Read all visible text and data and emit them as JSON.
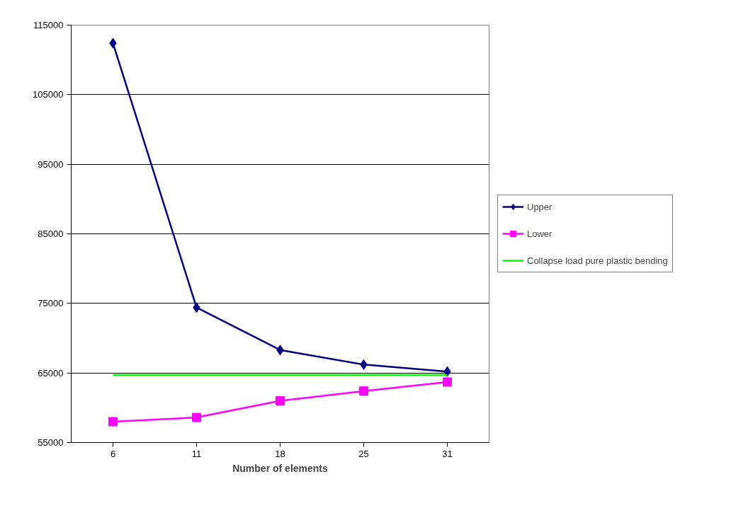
{
  "chart_data": {
    "type": "line",
    "xlabel": "Number of elements",
    "categories": [
      "6",
      "11",
      "18",
      "25",
      "31"
    ],
    "series": [
      {
        "name": "Upper",
        "color": "#000080",
        "marker": "diamond",
        "values": [
          112400,
          74400,
          68300,
          66200,
          65200
        ]
      },
      {
        "name": "Lower",
        "color": "#ff00ff",
        "marker": "square",
        "values": [
          58000,
          58600,
          61000,
          62400,
          63700
        ]
      },
      {
        "name": "Collapse load pure plastic bending",
        "color": "#00ff00",
        "marker": "none",
        "values": [
          64700,
          64700,
          64700,
          64700,
          64700
        ]
      }
    ],
    "ylim": [
      55000,
      115000
    ],
    "yticks": [
      55000,
      65000,
      75000,
      85000,
      95000,
      105000,
      115000
    ],
    "grid": "y",
    "legend": "right",
    "line_style": "solid"
  }
}
